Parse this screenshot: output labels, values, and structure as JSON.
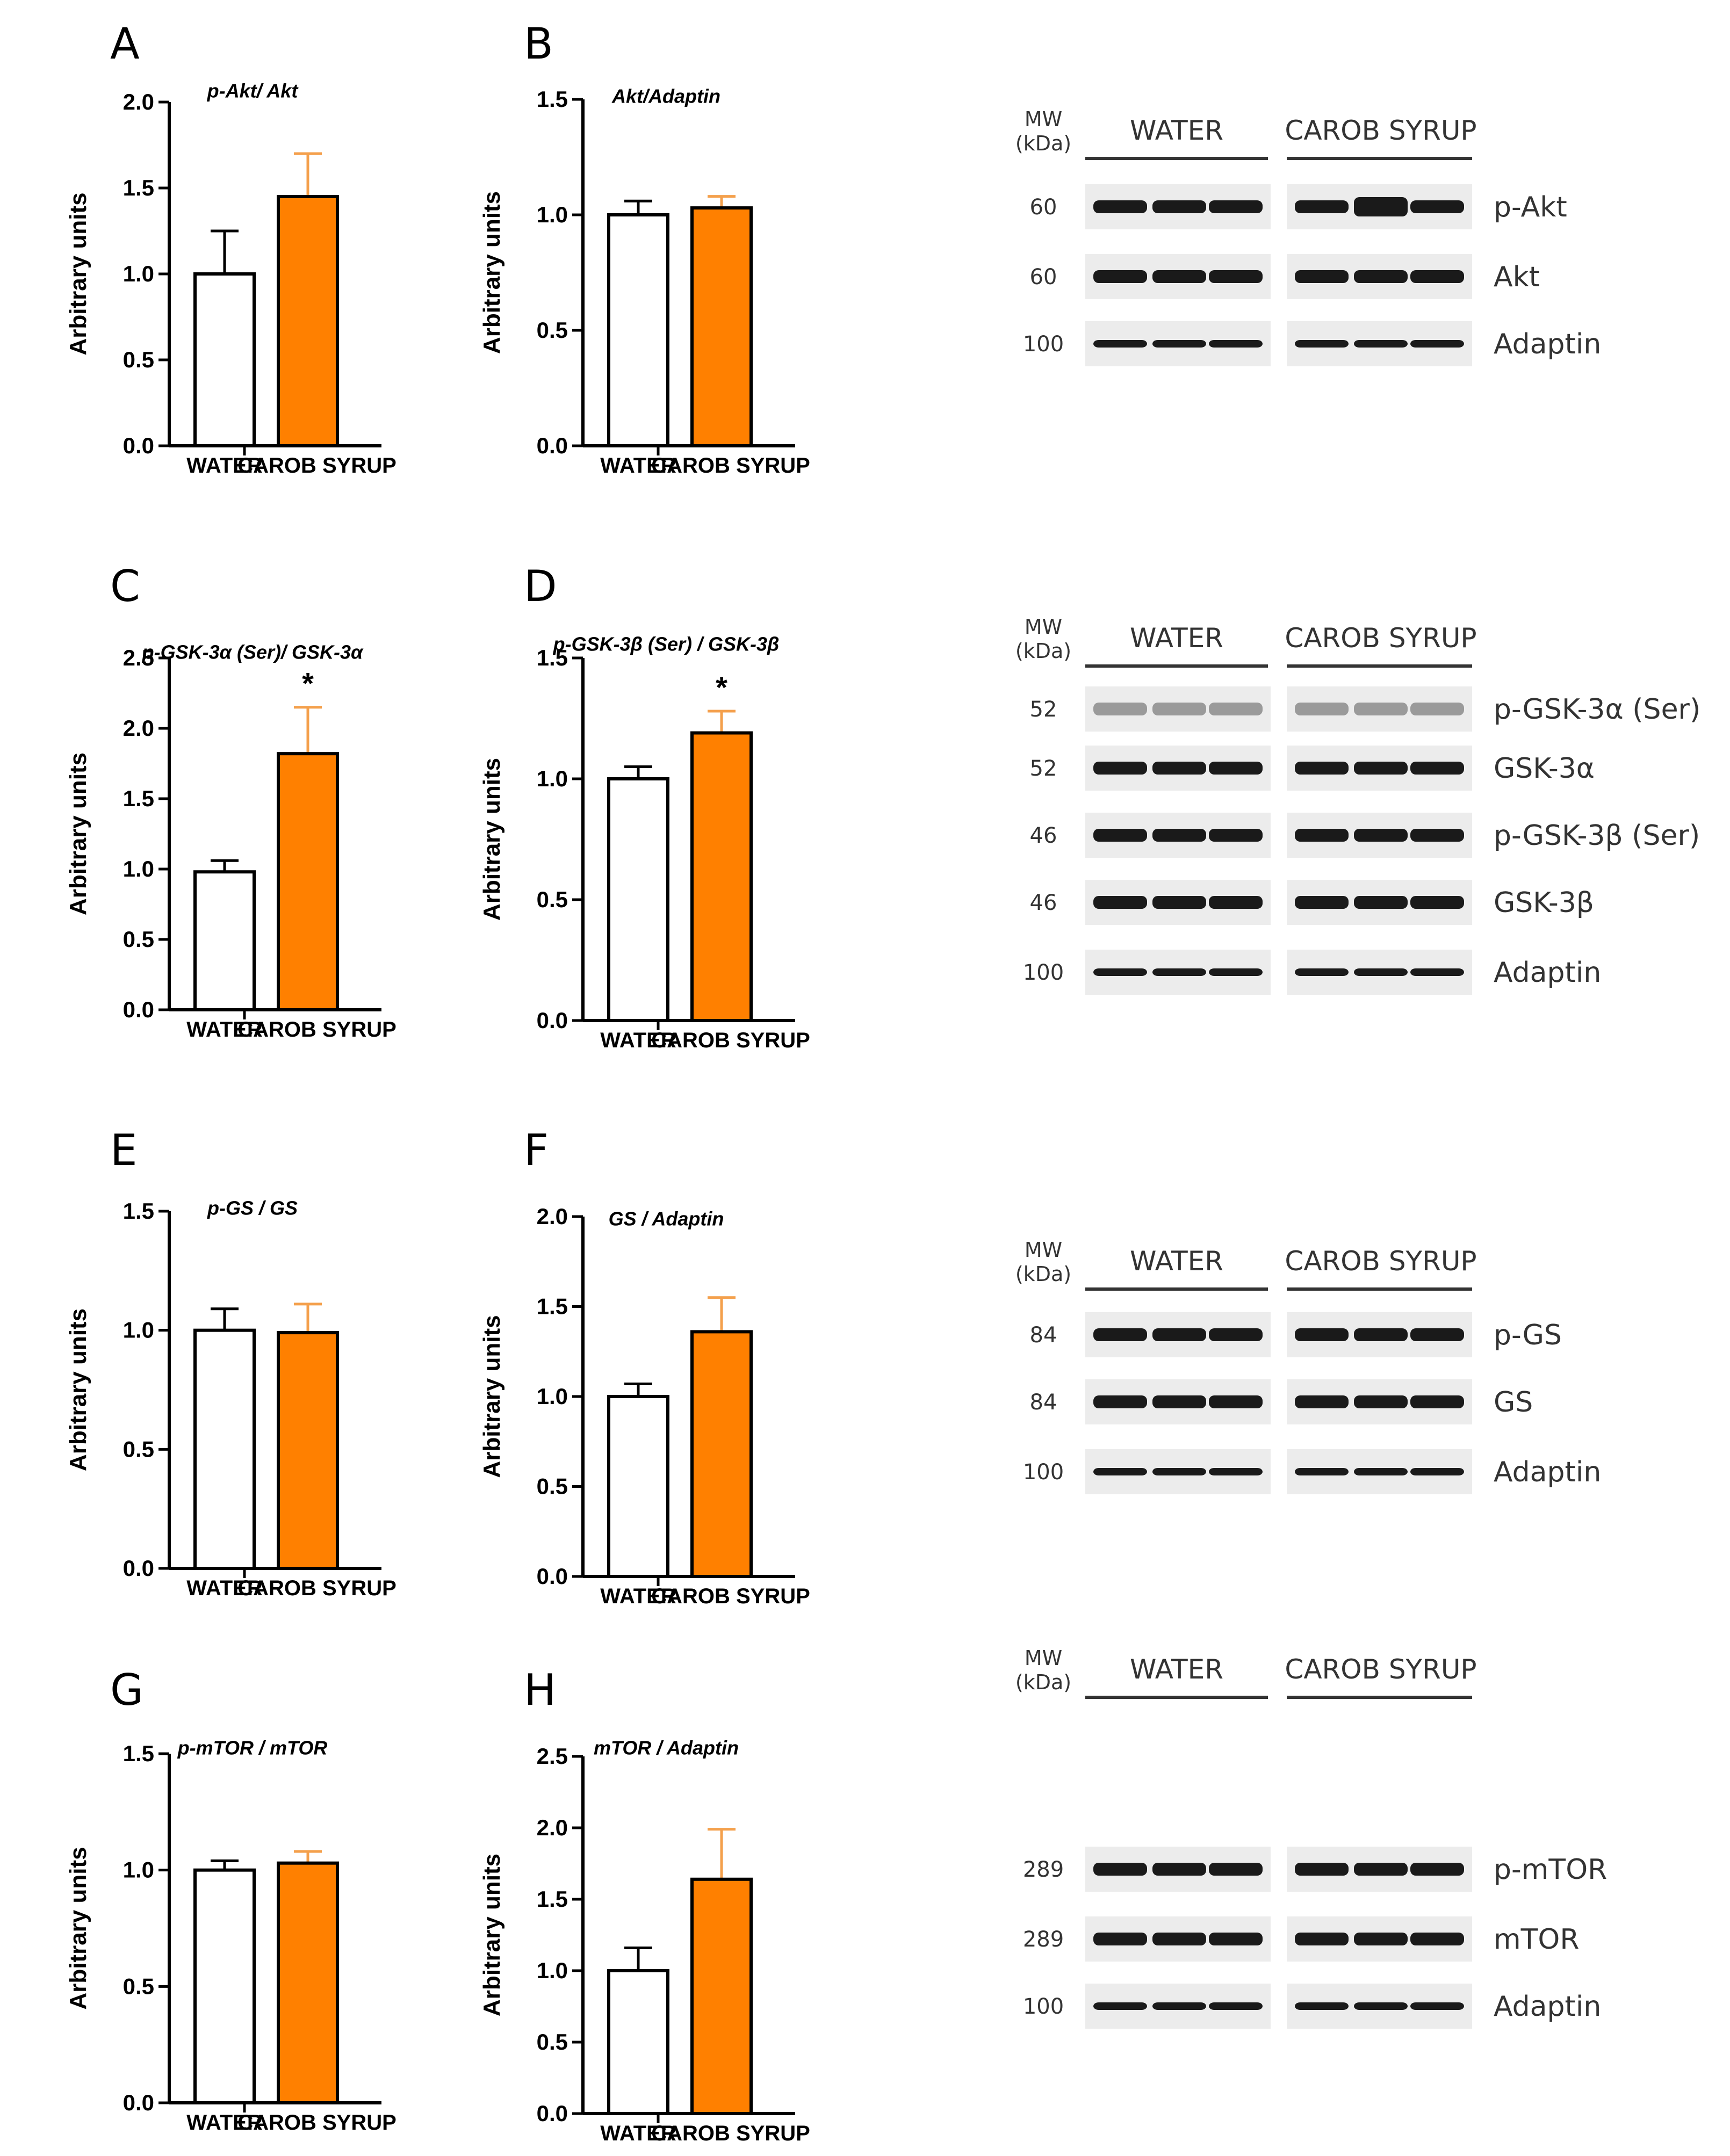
{
  "colors": {
    "water_fill": "#ffffff",
    "carob_fill": "#ff8000",
    "carob_error": "#f4a04c",
    "axis": "#000000"
  },
  "charts": [
    {
      "letter": "A",
      "title": "p-Akt/ Akt",
      "ylabel": "Arbitrary units",
      "categories": [
        "WATER",
        "CAROB SYRUP"
      ],
      "values": [
        1.0,
        1.45
      ],
      "errors": [
        0.25,
        0.25
      ],
      "ylim": [
        0,
        2.0
      ],
      "ticks": [
        "0.0",
        "0.5",
        "1.0",
        "1.5",
        "2.0"
      ],
      "star": ""
    },
    {
      "letter": "B",
      "title": "Akt/Adaptin",
      "ylabel": "Arbitrary units",
      "categories": [
        "WATER",
        "CAROB SYRUP"
      ],
      "values": [
        1.0,
        1.03
      ],
      "errors": [
        0.06,
        0.05
      ],
      "ylim": [
        0,
        1.5
      ],
      "ticks": [
        "0.0",
        "0.5",
        "1.0",
        "1.5"
      ],
      "star": ""
    },
    {
      "letter": "C",
      "title": "p-GSK-3α (Ser)/ GSK-3α",
      "ylabel": "Arbitrary units",
      "categories": [
        "WATER",
        "CAROB SYRUP"
      ],
      "values": [
        0.98,
        1.82
      ],
      "errors": [
        0.08,
        0.33
      ],
      "ylim": [
        0,
        2.5
      ],
      "ticks": [
        "0.0",
        "0.5",
        "1.0",
        "1.5",
        "2.0",
        "2.5"
      ],
      "star": "*"
    },
    {
      "letter": "D",
      "title": "p-GSK-3β (Ser) / GSK-3β",
      "ylabel": "Arbitrary units",
      "categories": [
        "WATER",
        "CAROB SYRUP"
      ],
      "values": [
        1.0,
        1.19
      ],
      "errors": [
        0.05,
        0.09
      ],
      "ylim": [
        0,
        1.5
      ],
      "ticks": [
        "0.0",
        "0.5",
        "1.0",
        "1.5"
      ],
      "star": "*"
    },
    {
      "letter": "E",
      "title": "p-GS / GS",
      "ylabel": "Arbitrary units",
      "categories": [
        "WATER",
        "CAROB SYRUP"
      ],
      "values": [
        1.0,
        0.99
      ],
      "errors": [
        0.09,
        0.12
      ],
      "ylim": [
        0,
        1.5
      ],
      "ticks": [
        "0.0",
        "0.5",
        "1.0",
        "1.5"
      ],
      "star": ""
    },
    {
      "letter": "F",
      "title": "GS / Adaptin",
      "ylabel": "Arbitrary units",
      "categories": [
        "WATER",
        "CAROB SYRUP"
      ],
      "values": [
        1.0,
        1.36
      ],
      "errors": [
        0.07,
        0.19
      ],
      "ylim": [
        0,
        2.0
      ],
      "ticks": [
        "0.0",
        "0.5",
        "1.0",
        "1.5",
        "2.0"
      ],
      "star": ""
    },
    {
      "letter": "G",
      "title": "p-mTOR / mTOR",
      "ylabel": "Arbitrary units",
      "categories": [
        "WATER",
        "CAROB SYRUP"
      ],
      "values": [
        1.0,
        1.03
      ],
      "errors": [
        0.04,
        0.05
      ],
      "ylim": [
        0,
        1.5
      ],
      "ticks": [
        "0.0",
        "0.5",
        "1.0",
        "1.5"
      ],
      "star": ""
    },
    {
      "letter": "H",
      "title": "mTOR / Adaptin",
      "ylabel": "Arbitrary units",
      "categories": [
        "WATER",
        "CAROB SYRUP"
      ],
      "values": [
        1.0,
        1.64
      ],
      "errors": [
        0.16,
        0.35
      ],
      "ylim": [
        0,
        2.5
      ],
      "ticks": [
        "0.0",
        "0.5",
        "1.0",
        "1.5",
        "2.0",
        "2.5"
      ],
      "star": ""
    }
  ],
  "blots": [
    {
      "mw_label": "MW",
      "kda_label": "(kDa)",
      "group1": "WATER",
      "group2": "CAROB SYRUP",
      "rows": [
        {
          "mw": "60",
          "protein": "p-Akt"
        },
        {
          "mw": "60",
          "protein": "Akt"
        },
        {
          "mw": "100",
          "protein": "Adaptin"
        }
      ]
    },
    {
      "mw_label": "MW",
      "kda_label": "(kDa)",
      "group1": "WATER",
      "group2": "CAROB SYRUP",
      "rows": [
        {
          "mw": "52",
          "protein": "p-GSK-3α (Ser)"
        },
        {
          "mw": "52",
          "protein": "GSK-3α"
        },
        {
          "mw": "46",
          "protein": "p-GSK-3β (Ser)"
        },
        {
          "mw": "46",
          "protein": "GSK-3β"
        },
        {
          "mw": "100",
          "protein": "Adaptin"
        }
      ]
    },
    {
      "mw_label": "MW",
      "kda_label": "(kDa)",
      "group1": "WATER",
      "group2": "CAROB SYRUP",
      "rows": [
        {
          "mw": "84",
          "protein": "p-GS"
        },
        {
          "mw": "84",
          "protein": "GS"
        },
        {
          "mw": "100",
          "protein": "Adaptin"
        }
      ]
    },
    {
      "mw_label": "MW",
      "kda_label": "(kDa)",
      "group1": "WATER",
      "group2": "CAROB SYRUP",
      "rows": [
        {
          "mw": "289",
          "protein": "p-mTOR"
        },
        {
          "mw": "289",
          "protein": "mTOR"
        },
        {
          "mw": "100",
          "protein": "Adaptin"
        }
      ]
    }
  ],
  "chart_data": [
    {
      "type": "bar",
      "panel": "A",
      "title": "p-Akt/ Akt",
      "categories": [
        "WATER",
        "CAROB SYRUP"
      ],
      "values": [
        1.0,
        1.45
      ],
      "errors": [
        0.25,
        0.25
      ],
      "xlabel": "",
      "ylabel": "Arbitrary units",
      "ylim": [
        0,
        2.0
      ]
    },
    {
      "type": "bar",
      "panel": "B",
      "title": "Akt/Adaptin",
      "categories": [
        "WATER",
        "CAROB SYRUP"
      ],
      "values": [
        1.0,
        1.03
      ],
      "errors": [
        0.06,
        0.05
      ],
      "xlabel": "",
      "ylabel": "Arbitrary units",
      "ylim": [
        0,
        1.5
      ]
    },
    {
      "type": "bar",
      "panel": "C",
      "title": "p-GSK-3α (Ser)/ GSK-3α",
      "categories": [
        "WATER",
        "CAROB SYRUP"
      ],
      "values": [
        0.98,
        1.82
      ],
      "errors": [
        0.08,
        0.33
      ],
      "xlabel": "",
      "ylabel": "Arbitrary units",
      "ylim": [
        0,
        2.5
      ],
      "annotation": "*"
    },
    {
      "type": "bar",
      "panel": "D",
      "title": "p-GSK-3β (Ser) / GSK-3β",
      "categories": [
        "WATER",
        "CAROB SYRUP"
      ],
      "values": [
        1.0,
        1.19
      ],
      "errors": [
        0.05,
        0.09
      ],
      "xlabel": "",
      "ylabel": "Arbitrary units",
      "ylim": [
        0,
        1.5
      ],
      "annotation": "*"
    },
    {
      "type": "bar",
      "panel": "E",
      "title": "p-GS / GS",
      "categories": [
        "WATER",
        "CAROB SYRUP"
      ],
      "values": [
        1.0,
        0.99
      ],
      "errors": [
        0.09,
        0.12
      ],
      "xlabel": "",
      "ylabel": "Arbitrary units",
      "ylim": [
        0,
        1.5
      ]
    },
    {
      "type": "bar",
      "panel": "F",
      "title": "GS / Adaptin",
      "categories": [
        "WATER",
        "CAROB SYRUP"
      ],
      "values": [
        1.0,
        1.36
      ],
      "errors": [
        0.07,
        0.19
      ],
      "xlabel": "",
      "ylabel": "Arbitrary units",
      "ylim": [
        0,
        2.0
      ]
    },
    {
      "type": "bar",
      "panel": "G",
      "title": "p-mTOR / mTOR",
      "categories": [
        "WATER",
        "CAROB SYRUP"
      ],
      "values": [
        1.0,
        1.03
      ],
      "errors": [
        0.04,
        0.05
      ],
      "xlabel": "",
      "ylabel": "Arbitrary units",
      "ylim": [
        0,
        1.5
      ]
    },
    {
      "type": "bar",
      "panel": "H",
      "title": "mTOR / Adaptin",
      "categories": [
        "WATER",
        "CAROB SYRUP"
      ],
      "values": [
        1.0,
        1.64
      ],
      "errors": [
        0.16,
        0.35
      ],
      "xlabel": "",
      "ylabel": "Arbitrary units",
      "ylim": [
        0,
        2.5
      ]
    }
  ]
}
